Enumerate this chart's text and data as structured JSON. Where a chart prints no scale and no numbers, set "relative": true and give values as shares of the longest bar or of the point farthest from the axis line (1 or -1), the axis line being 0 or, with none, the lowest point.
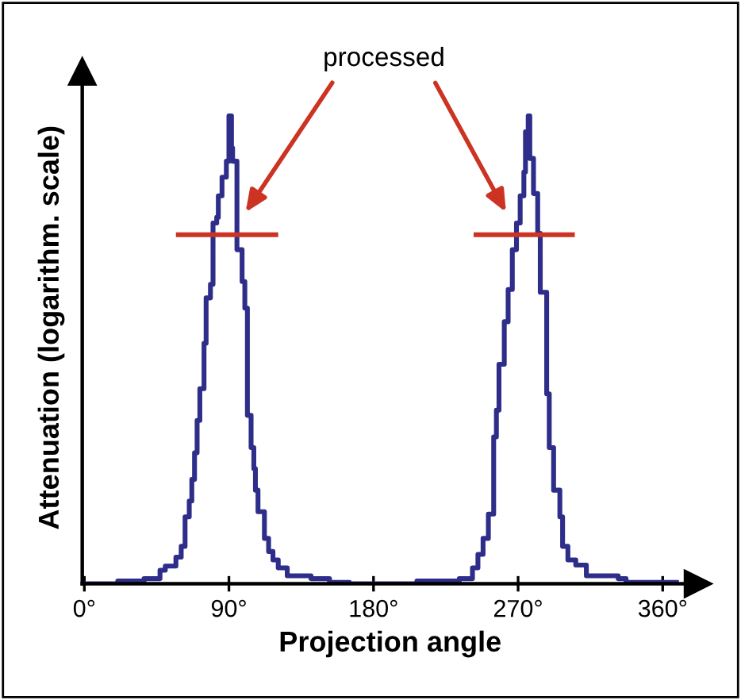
{
  "chart_data": {
    "type": "step",
    "relative": true,
    "xlabel": "Projection angle",
    "ylabel": "Attenuation (logarithm. scale)",
    "annotations": [
      "processed"
    ],
    "xlim": [
      -1.3,
      382
    ],
    "xticks": [
      {
        "value": 0,
        "label": "0°"
      },
      {
        "value": 90,
        "label": "90°"
      },
      {
        "value": 180,
        "label": "180°"
      },
      {
        "value": 270,
        "label": "270°"
      },
      {
        "value": 360,
        "label": "360°"
      }
    ],
    "tick_labels": "x",
    "grid": false,
    "legend": false,
    "series": [
      {
        "color": "#2e2e8a",
        "x": [
          0,
          20.8,
          37.2,
          47.1,
          50.4,
          57.0,
          60.3,
          62.7,
          65.3,
          66.9,
          68.6,
          70.2,
          71.9,
          74.5,
          75.8,
          78.5,
          80.1,
          82.4,
          83.4,
          85.7,
          88.4,
          90.0,
          91.6,
          92.3,
          95.0,
          98.2,
          99.9,
          101.5,
          103.8,
          105.5,
          106.5,
          108.1,
          112.1,
          114.7,
          117.4,
          120.7,
          126.3,
          141.1,
          152.6,
          165,
          207.0,
          233.4,
          241.6,
          245.0,
          248.2,
          251.5,
          254.8,
          256.5,
          258.1,
          261.4,
          263.8,
          266.4,
          269.0,
          271.3,
          273.6,
          274.6,
          276.3,
          277.3,
          279.6,
          282.2,
          283.8,
          287.8,
          289.4,
          292.1,
          296.0,
          297.7,
          301.0,
          305.9,
          312.5,
          332.3,
          337.2,
          368.6
        ],
        "values": [
          0,
          0.006,
          0.011,
          0.029,
          0.038,
          0.057,
          0.08,
          0.143,
          0.177,
          0.223,
          0.28,
          0.349,
          0.417,
          0.514,
          0.611,
          0.64,
          0.771,
          0.783,
          0.829,
          0.869,
          0.903,
          1.0,
          0.931,
          0.903,
          0.714,
          0.646,
          0.589,
          0.36,
          0.291,
          0.246,
          0.2,
          0.154,
          0.097,
          0.069,
          0.051,
          0.034,
          0.017,
          0.011,
          0.003,
          0,
          0.006,
          0.011,
          0.034,
          0.063,
          0.097,
          0.149,
          0.314,
          0.371,
          0.469,
          0.56,
          0.629,
          0.714,
          0.771,
          0.829,
          0.88,
          0.966,
          1.0,
          0.909,
          0.834,
          0.749,
          0.623,
          0.406,
          0.291,
          0.2,
          0.143,
          0.08,
          0.051,
          0.04,
          0.017,
          0.011,
          0.003,
          0.003
        ]
      },
      {
        "type": "line",
        "color": "#cc3322",
        "x": [
          57.0,
          120.7
        ],
        "values": [
          0.746,
          0.746
        ]
      },
      {
        "type": "line",
        "color": "#cc3322",
        "x": [
          242.3,
          305.3
        ],
        "values": [
          0.746,
          0.746
        ]
      }
    ]
  }
}
